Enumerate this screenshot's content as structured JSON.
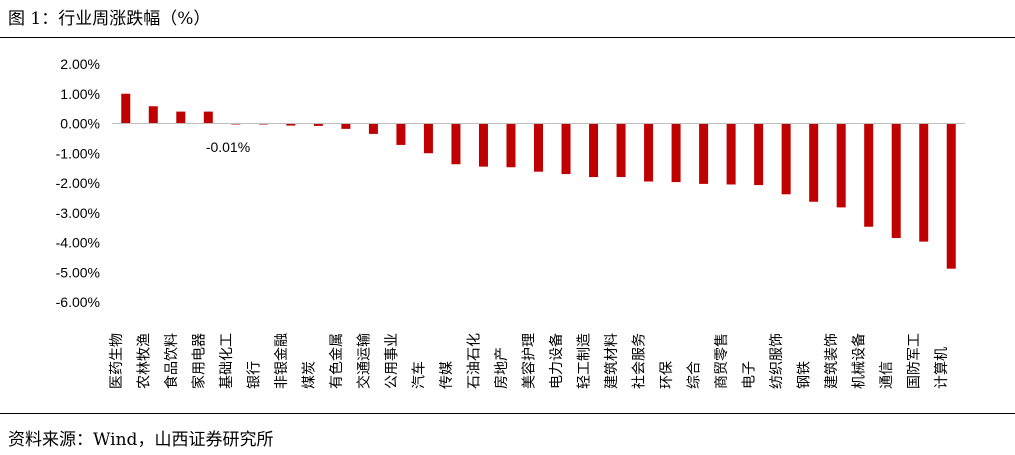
{
  "header": {
    "title": "图 1：行业周涨跌幅（%）"
  },
  "footer": {
    "source": "资料来源：Wind，山西证券研究所"
  },
  "chart_data": {
    "type": "bar",
    "title": "图 1：行业周涨跌幅（%）",
    "xlabel": "",
    "ylabel": "",
    "ylim": [
      -6,
      2
    ],
    "yticks": [
      2,
      1,
      0,
      -1,
      -2,
      -3,
      -4,
      -5,
      -6
    ],
    "ytick_labels": [
      "2.00%",
      "1.00%",
      "0.00%",
      "-1.00%",
      "-2.00%",
      "-3.00%",
      "-4.00%",
      "-5.00%",
      "-6.00%"
    ],
    "grid": false,
    "legend": "none",
    "bar_color": "#c00000",
    "categories": [
      "医药生物",
      "农林牧渔",
      "食品饮料",
      "家用电器",
      "基础化工",
      "银行",
      "非银金融",
      "煤炭",
      "有色金属",
      "交通运输",
      "公用事业",
      "汽车",
      "传媒",
      "石油石化",
      "房地产",
      "美容护理",
      "电力设备",
      "轻工制造",
      "建筑材料",
      "社会服务",
      "环保",
      "综合",
      "商贸零售",
      "电子",
      "纺织服饰",
      "钢铁",
      "建筑装饰",
      "机械设备",
      "通信",
      "国防军工",
      "计算机"
    ],
    "values": [
      1.0,
      0.58,
      0.4,
      0.4,
      -0.01,
      -0.03,
      -0.07,
      -0.08,
      -0.18,
      -0.35,
      -0.72,
      -1.0,
      -1.37,
      -1.45,
      -1.47,
      -1.62,
      -1.7,
      -1.8,
      -1.8,
      -1.95,
      -1.97,
      -2.03,
      -2.05,
      -2.07,
      -2.38,
      -2.63,
      -2.82,
      -3.47,
      -3.85,
      -3.97,
      -4.88
    ],
    "annotations": [
      {
        "index": 4,
        "text": "-0.01%"
      }
    ]
  }
}
